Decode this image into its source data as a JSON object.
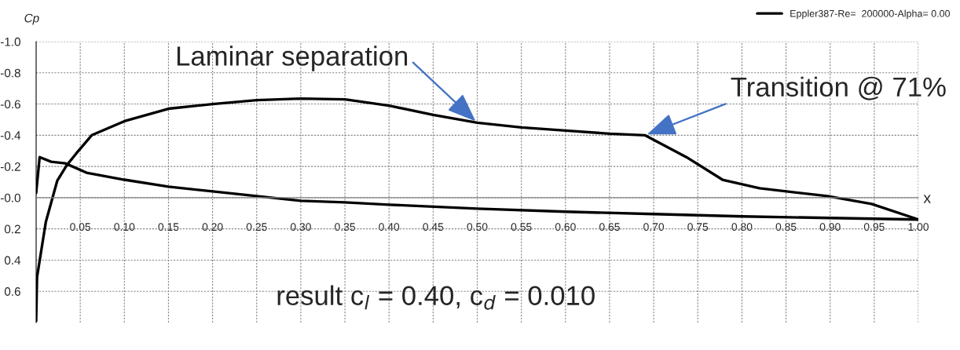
{
  "chart_data": {
    "type": "line",
    "xlabel": "x",
    "ylabel": "Cp",
    "series": [
      {
        "name": "Eppler387-Re=  200000-Alpha= 0.00",
        "color": "#000000",
        "x": [
          0.0,
          0.001,
          0.011,
          0.024,
          0.035,
          0.045,
          0.063,
          0.1,
          0.15,
          0.2,
          0.25,
          0.3,
          0.35,
          0.4,
          0.45,
          0.5,
          0.55,
          0.6,
          0.65,
          0.69,
          0.737,
          0.778,
          0.82,
          0.897,
          0.947,
          1.0
        ],
        "values": [
          0.79,
          0.51,
          0.155,
          -0.11,
          -0.21,
          -0.28,
          -0.4,
          -0.49,
          -0.57,
          -0.6,
          -0.625,
          -0.635,
          -0.63,
          -0.59,
          -0.53,
          -0.48,
          -0.45,
          -0.43,
          -0.41,
          -0.4,
          -0.26,
          -0.115,
          -0.06,
          -0.01,
          0.04,
          0.14
        ]
      },
      {
        "color": "#000000",
        "x": [
          0.0,
          0.004,
          0.017,
          0.033,
          0.057,
          0.1,
          0.15,
          0.2,
          0.25,
          0.3,
          0.35,
          0.4,
          0.5,
          0.6,
          0.7,
          0.8,
          0.9,
          1.0
        ],
        "values": [
          -0.03,
          -0.26,
          -0.23,
          -0.22,
          -0.16,
          -0.115,
          -0.07,
          -0.04,
          -0.01,
          0.02,
          0.03,
          0.045,
          0.07,
          0.09,
          0.105,
          0.12,
          0.13,
          0.14
        ]
      }
    ],
    "xlim": [
      0,
      1.0
    ],
    "xticks": [
      {
        "value": 0.05,
        "label": "0.05"
      },
      {
        "value": 0.1,
        "label": "0.10"
      },
      {
        "value": 0.15,
        "label": "0.15"
      },
      {
        "value": 0.2,
        "label": "0.20"
      },
      {
        "value": 0.25,
        "label": "0.25"
      },
      {
        "value": 0.3,
        "label": "0.30"
      },
      {
        "value": 0.35,
        "label": "0.35"
      },
      {
        "value": 0.4,
        "label": "0.40"
      },
      {
        "value": 0.45,
        "label": "0.45"
      },
      {
        "value": 0.5,
        "label": "0.50"
      },
      {
        "value": 0.55,
        "label": "0.55"
      },
      {
        "value": 0.6,
        "label": "0.60"
      },
      {
        "value": 0.65,
        "label": "0.65"
      },
      {
        "value": 0.7,
        "label": "0.70"
      },
      {
        "value": 0.75,
        "label": "0.75"
      },
      {
        "value": 0.8,
        "label": "0.80"
      },
      {
        "value": 0.85,
        "label": "0.85"
      },
      {
        "value": 0.9,
        "label": "0.90"
      },
      {
        "value": 0.95,
        "label": "0.95"
      },
      {
        "value": 1.0,
        "label": "1.00"
      }
    ],
    "ylim": [
      0.8,
      -1.0
    ],
    "yticks": [
      {
        "value": -1.0,
        "label": "-1.0"
      },
      {
        "value": -0.8,
        "label": "-0.8"
      },
      {
        "value": -0.6,
        "label": "-0.6"
      },
      {
        "value": -0.4,
        "label": "-0.4"
      },
      {
        "value": -0.2,
        "label": "-0.2"
      },
      {
        "value": 0,
        "label": "-0.0"
      },
      {
        "value": 0.2,
        "label": "0.2"
      },
      {
        "value": 0.4,
        "label": "0.4"
      },
      {
        "value": 0.6,
        "label": "0.6"
      }
    ],
    "grid": true,
    "legend": "top right",
    "line_style": "solid",
    "annotations": [
      {
        "text": "Laminar separation",
        "x": 0.5,
        "y": -0.48
      },
      {
        "text": "Transition @ 71%",
        "x": 0.69,
        "y": -0.4
      },
      "result c$_{l}$ = 0.40, c$_{d}$ = 0.010"
    ]
  }
}
